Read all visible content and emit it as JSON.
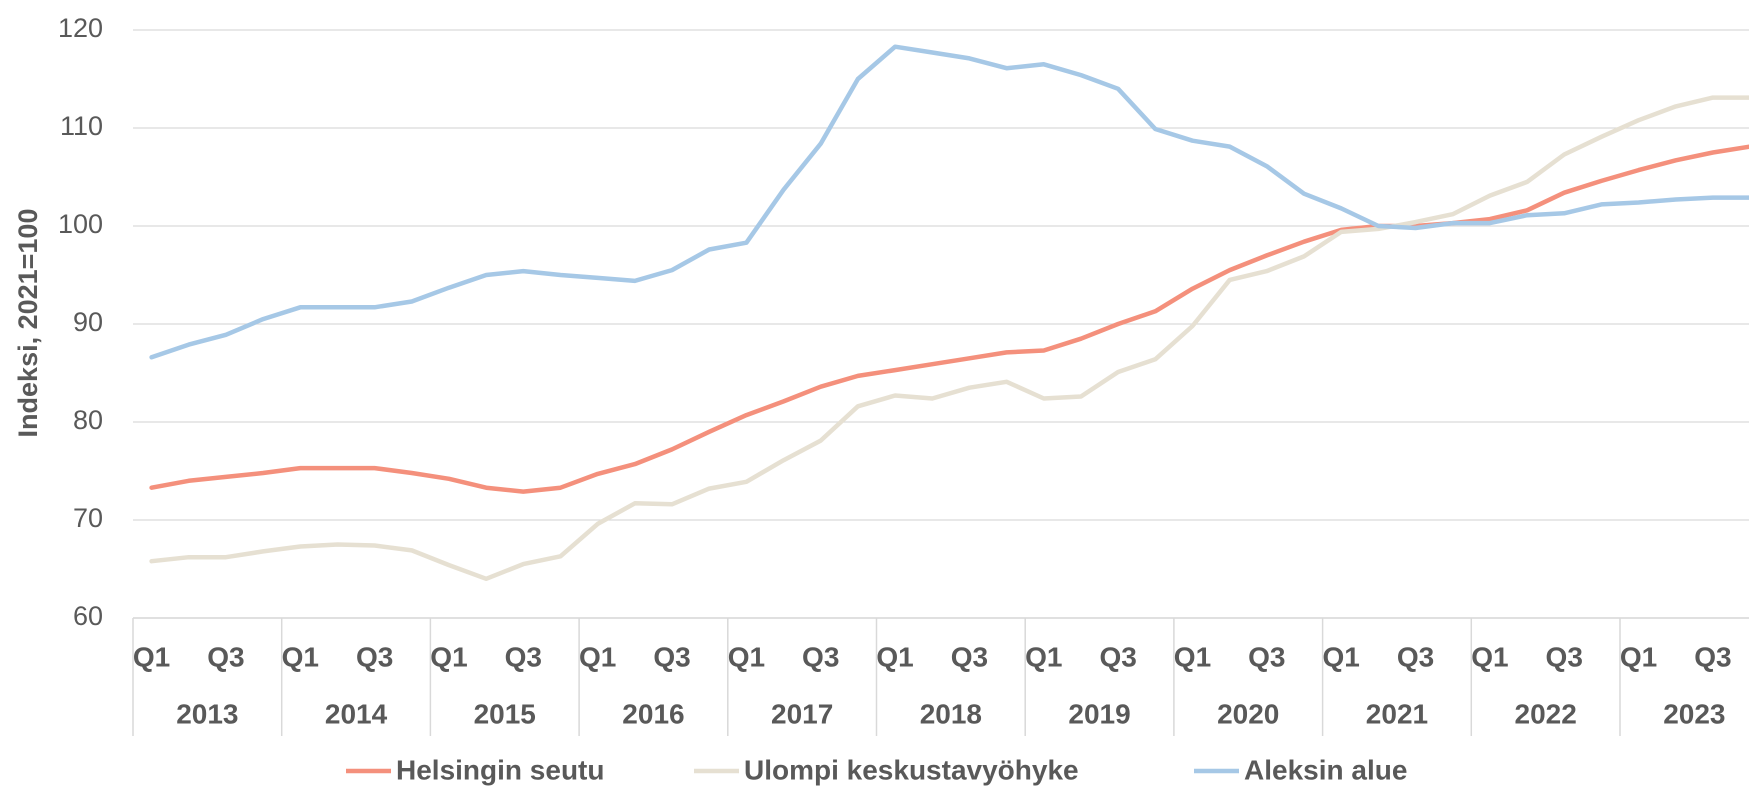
{
  "chart_data": {
    "type": "line",
    "y_axis_label": "Indeksi, 2021=100",
    "categories": [
      "Q1",
      null,
      "Q3",
      null,
      "Q1",
      null,
      "Q3",
      null,
      "Q1",
      null,
      "Q3",
      null,
      "Q1",
      null,
      "Q3",
      null,
      "Q1",
      null,
      "Q3",
      null,
      "Q1",
      null,
      "Q3",
      null,
      "Q1",
      null,
      "Q3",
      null,
      "Q1",
      null,
      "Q3",
      null,
      "Q1",
      null,
      "Q3",
      null,
      "Q1",
      null,
      "Q3",
      null,
      "Q1",
      null,
      "Q3",
      null
    ],
    "years": [
      "2013",
      "2014",
      "2015",
      "2016",
      "2017",
      "2018",
      "2019",
      "2020",
      "2021",
      "2022",
      "2023"
    ],
    "ylim": [
      60,
      120
    ],
    "yticks": [
      60,
      70,
      80,
      90,
      100,
      110,
      120
    ],
    "grid": true,
    "legend": "bottom",
    "series": [
      {
        "name": "Helsingin seutu",
        "color": "#f4907c",
        "values": [
          73.3,
          74.0,
          74.4,
          74.8,
          75.3,
          75.3,
          75.3,
          74.8,
          74.2,
          73.3,
          72.9,
          73.3,
          74.7,
          75.7,
          77.2,
          79.0,
          80.7,
          82.1,
          83.6,
          84.7,
          85.3,
          85.9,
          86.5,
          87.1,
          87.3,
          88.5,
          90.0,
          91.3,
          93.6,
          95.5,
          97.0,
          98.4,
          99.6,
          100.0,
          100.0,
          100.3,
          100.7,
          101.6,
          103.4,
          104.6,
          105.7,
          106.7,
          107.5,
          108.1
        ]
      },
      {
        "name": "Ulompi keskustavyöhyke",
        "color": "#e6e0d2",
        "values": [
          65.8,
          66.2,
          66.2,
          66.8,
          67.3,
          67.5,
          67.4,
          66.9,
          65.4,
          64.0,
          65.5,
          66.3,
          69.6,
          71.7,
          71.6,
          73.2,
          73.9,
          76.1,
          78.1,
          81.6,
          82.7,
          82.4,
          83.5,
          84.1,
          82.4,
          82.6,
          85.1,
          86.4,
          89.8,
          94.5,
          95.4,
          96.9,
          99.4,
          99.7,
          100.4,
          101.2,
          103.1,
          104.5,
          107.3,
          109.1,
          110.8,
          112.2,
          113.1,
          113.1
        ]
      },
      {
        "name": "Aleksin alue",
        "color": "#a6c8e6",
        "values": [
          86.6,
          87.9,
          88.9,
          90.5,
          91.7,
          91.7,
          91.7,
          92.3,
          93.7,
          95.0,
          95.4,
          95.0,
          94.7,
          94.4,
          95.5,
          97.6,
          98.3,
          103.7,
          108.4,
          115.0,
          118.3,
          117.7,
          117.1,
          116.1,
          116.5,
          115.4,
          114.0,
          109.9,
          108.7,
          108.1,
          106.1,
          103.3,
          101.8,
          100.0,
          99.8,
          100.3,
          100.3,
          101.1,
          101.3,
          102.2,
          102.4,
          102.7,
          102.9,
          102.9
        ]
      }
    ]
  }
}
